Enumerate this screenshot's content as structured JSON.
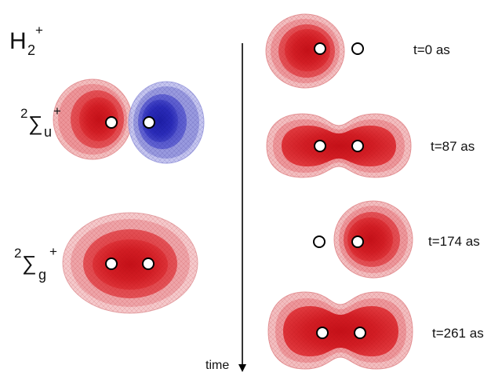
{
  "title": {
    "main": "H",
    "sub": "2",
    "sup": "+"
  },
  "left_states": [
    {
      "multiplicity": "2",
      "symbol": "∑",
      "sub": "u",
      "sup": "+"
    },
    {
      "multiplicity": "2",
      "symbol": "∑",
      "sub": "g",
      "sup": "+"
    }
  ],
  "time_axis": {
    "label": "time"
  },
  "snapshots": [
    {
      "label": "t=0 as"
    },
    {
      "label": "t=87 as"
    },
    {
      "label": "t=174 as"
    },
    {
      "label": "t=261 as"
    }
  ],
  "colors": {
    "positive_lobe": "#d8252b",
    "negative_lobe": "#2a2bb8",
    "nucleus_fill": "#ffffff",
    "nucleus_stroke": "#000000",
    "axis": "#000000"
  }
}
